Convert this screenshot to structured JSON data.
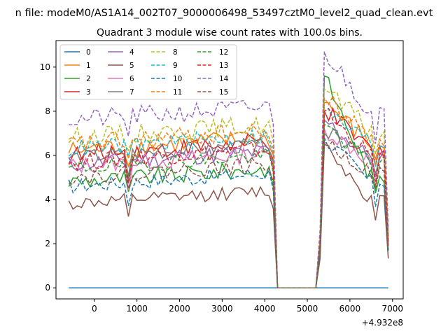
{
  "page": {
    "suptitle": "n file: modeM0/AS1A14_002T07_9000006498_53497cztM0_level2_quad_clean.evt"
  },
  "chart_data": {
    "type": "line",
    "title": "Quadrant 3 module wise count rates with 100.0s bins.",
    "xlabel": "",
    "ylabel": "",
    "x_offset_label": "+4.932e8",
    "xlim": [
      -900,
      7250
    ],
    "ylim": [
      -0.5,
      11.2
    ],
    "xticks": [
      0,
      1000,
      2000,
      3000,
      4000,
      5000,
      6000,
      7000
    ],
    "yticks": [
      0,
      2,
      4,
      6,
      8,
      10
    ],
    "grid": false,
    "legend": {
      "placement": "top-left",
      "columns": 4
    },
    "series": [
      {
        "name": "0",
        "color": "#1f77b4",
        "dash": "solid",
        "base": 0.0,
        "amp": 0.0,
        "peak": 0.0
      },
      {
        "name": "1",
        "color": "#ff7f0e",
        "dash": "solid",
        "base": 6.2,
        "amp": 0.45,
        "peak": 8.4
      },
      {
        "name": "2",
        "color": "#2ca02c",
        "dash": "solid",
        "base": 4.8,
        "amp": 0.4,
        "peak": 9.6
      },
      {
        "name": "3",
        "color": "#d62728",
        "dash": "solid",
        "base": 6.0,
        "amp": 0.45,
        "peak": 8.0
      },
      {
        "name": "4",
        "color": "#9467bd",
        "dash": "solid",
        "base": 5.6,
        "amp": 0.4,
        "peak": 7.6
      },
      {
        "name": "5",
        "color": "#8c564b",
        "dash": "solid",
        "base": 3.8,
        "amp": 0.3,
        "peak": 6.5
      },
      {
        "name": "6",
        "color": "#e377c2",
        "dash": "solid",
        "base": 5.5,
        "amp": 0.4,
        "peak": 7.2
      },
      {
        "name": "7",
        "color": "#7f7f7f",
        "dash": "solid",
        "base": 5.9,
        "amp": 0.35,
        "peak": 7.0
      },
      {
        "name": "8",
        "color": "#bcbd22",
        "dash": "dashed",
        "base": 6.8,
        "amp": 0.45,
        "peak": 9.0
      },
      {
        "name": "9",
        "color": "#17becf",
        "dash": "dashed",
        "base": 6.3,
        "amp": 0.4,
        "peak": 8.0
      },
      {
        "name": "10",
        "color": "#1f77b4",
        "dash": "dashed",
        "base": 4.6,
        "amp": 0.35,
        "peak": 6.8
      },
      {
        "name": "11",
        "color": "#ff7f0e",
        "dash": "dashed",
        "base": 6.5,
        "amp": 0.45,
        "peak": 8.6
      },
      {
        "name": "12",
        "color": "#2ca02c",
        "dash": "dashed",
        "base": 5.4,
        "amp": 0.35,
        "peak": 7.4
      },
      {
        "name": "13",
        "color": "#d62728",
        "dash": "dashed",
        "base": 5.7,
        "amp": 0.4,
        "peak": 8.0
      },
      {
        "name": "14",
        "color": "#9467bd",
        "dash": "dashed",
        "base": 7.6,
        "amp": 0.45,
        "peak": 10.7
      },
      {
        "name": "15",
        "color": "#8c564b",
        "dash": "dashed",
        "base": 5.0,
        "amp": 0.35,
        "peak": 6.6
      }
    ]
  }
}
